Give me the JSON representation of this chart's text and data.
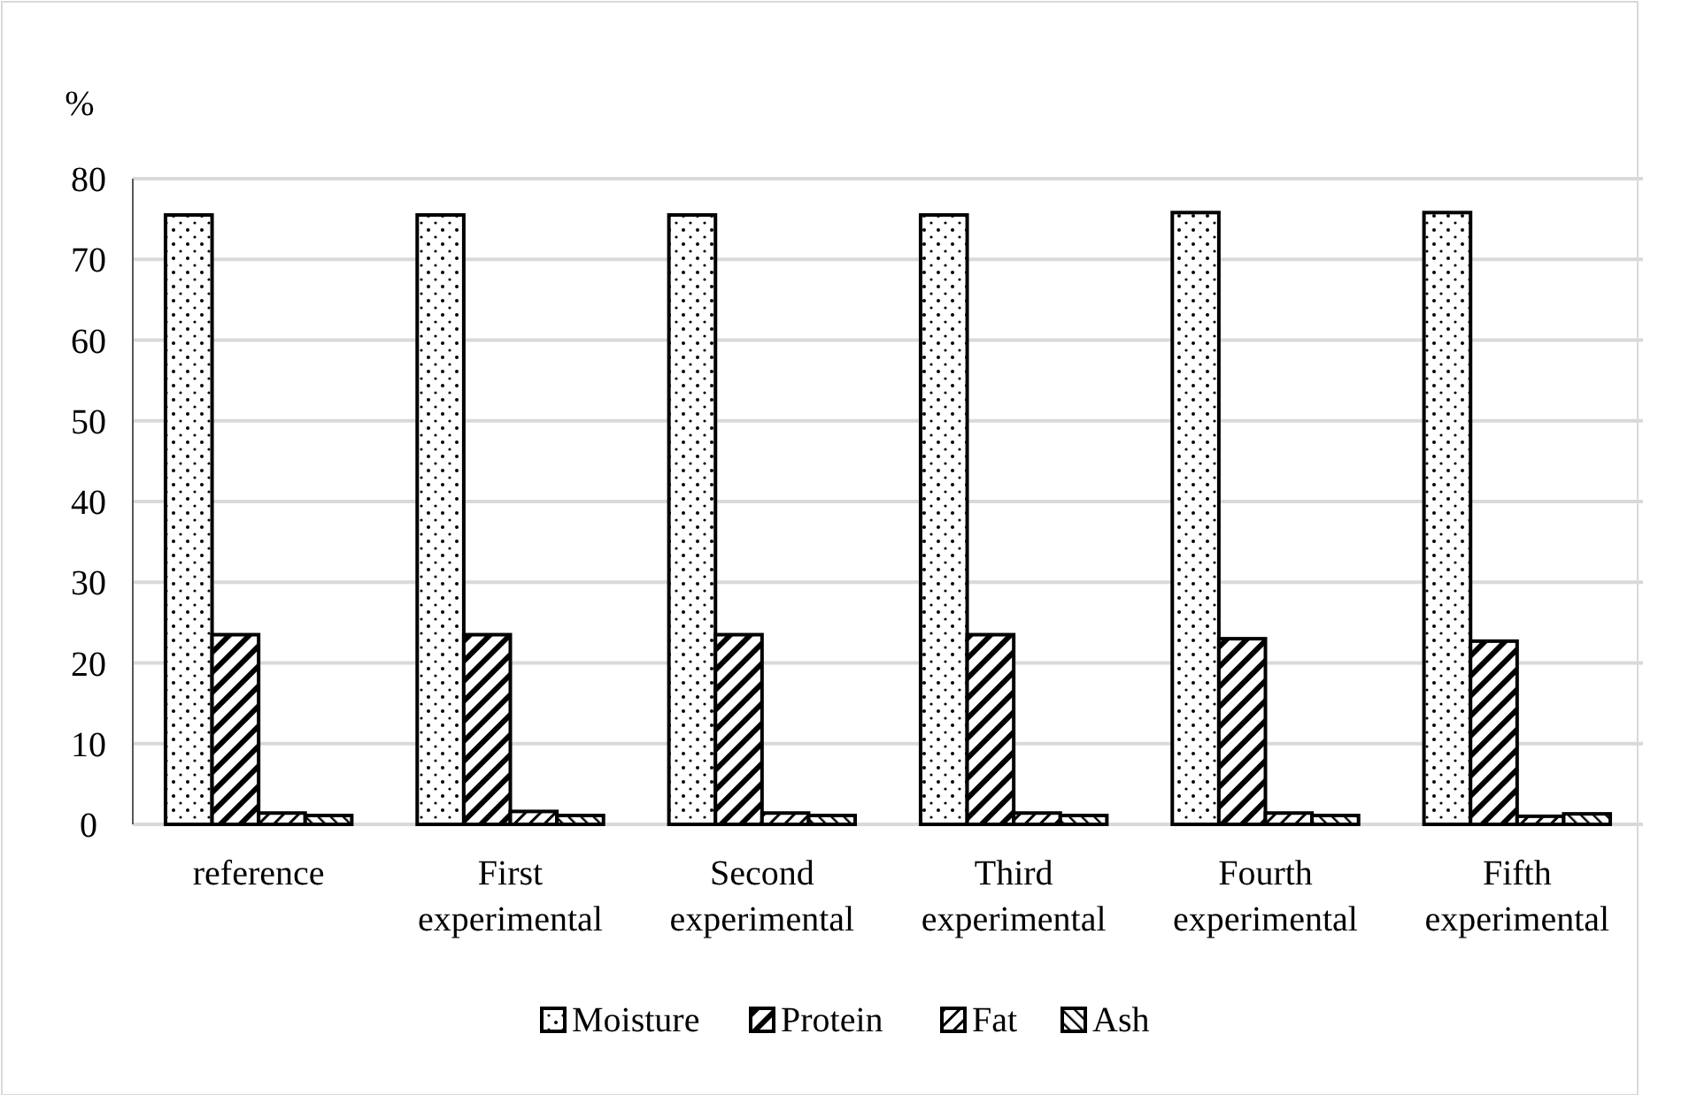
{
  "chart_data": {
    "type": "bar",
    "ylabel": "%",
    "categories": [
      "reference",
      "First experimental",
      "Second experimental",
      "Third experimental",
      "Fourth experimental",
      "Fifth experimental"
    ],
    "series": [
      {
        "name": "Moisture",
        "color": "#000000",
        "values": [
          75.5,
          75.5,
          75.5,
          75.5,
          75.8,
          75.8
        ]
      },
      {
        "name": "Protein",
        "color": "#000000",
        "values": [
          23.5,
          23.5,
          23.5,
          23.5,
          23.0,
          22.7
        ]
      },
      {
        "name": "Fat",
        "color": "#000000",
        "values": [
          1.4,
          1.6,
          1.4,
          1.4,
          1.4,
          1.0
        ]
      },
      {
        "name": "Ash",
        "color": "#000000",
        "values": [
          1.1,
          1.1,
          1.1,
          1.1,
          1.1,
          1.3
        ]
      }
    ],
    "ylim": [
      0,
      80
    ],
    "yticks": [
      0,
      10,
      20,
      30,
      40,
      50,
      60,
      70,
      80
    ],
    "grid": "y",
    "legend": "bottom"
  }
}
